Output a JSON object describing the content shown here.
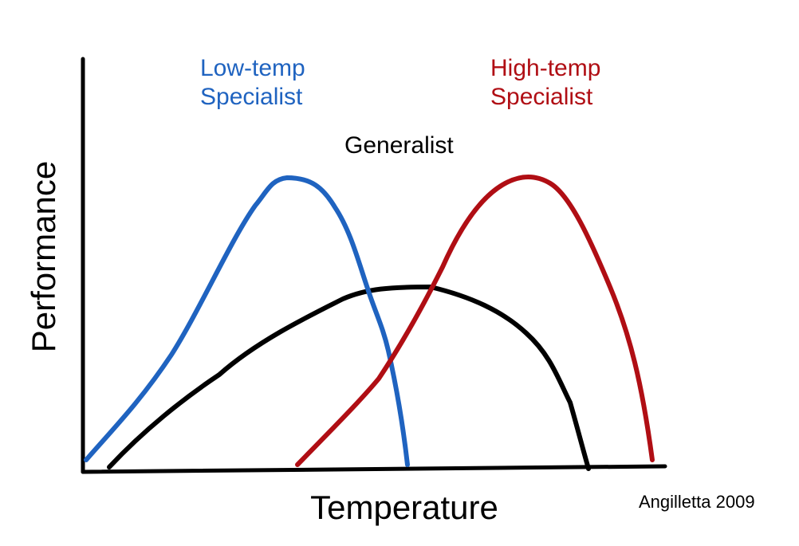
{
  "figure": {
    "y_axis_label": "Performance",
    "x_axis_label": "Temperature",
    "citation": "Angilletta 2009"
  },
  "curves": [
    {
      "id": "low",
      "label_line1": "Low-temp",
      "label_line2": "Specialist",
      "color": "#1f63c0"
    },
    {
      "id": "generalist",
      "label_line1": "Generalist",
      "color": "#000000"
    },
    {
      "id": "high",
      "label_line1": "High-temp",
      "label_line2": "Specialist",
      "color": "#b00e14"
    }
  ],
  "axes": {
    "color": "#000000"
  }
}
